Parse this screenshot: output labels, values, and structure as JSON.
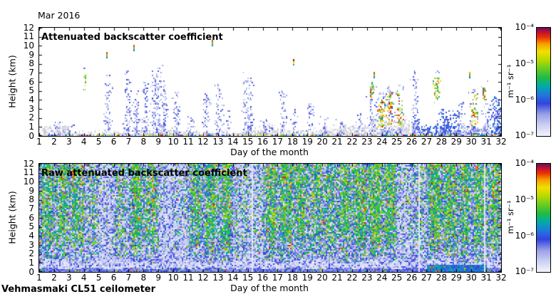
{
  "title": "Mar 2016",
  "footer": "Vehmasmaki CL51 ceilometer",
  "colorbar": {
    "unit": "m⁻¹ sr⁻¹",
    "ticks": [
      "10⁻⁴",
      "10⁻⁵",
      "10⁻⁶",
      "10⁻⁷"
    ]
  },
  "panels": [
    {
      "label": "Attenuated backscatter coefficient",
      "xlabel": "Day of the month",
      "ylabel": "Height (km)",
      "x_ticks": [
        1,
        2,
        3,
        4,
        5,
        6,
        7,
        8,
        9,
        10,
        11,
        12,
        13,
        14,
        15,
        16,
        17,
        18,
        19,
        20,
        21,
        22,
        23,
        24,
        25,
        26,
        27,
        28,
        29,
        30,
        31,
        32
      ],
      "y_ticks": [
        0,
        1,
        2,
        3,
        4,
        5,
        6,
        7,
        8,
        9,
        10,
        11,
        12
      ]
    },
    {
      "label": "Raw attenuated backscatter coefficient",
      "xlabel": "Day of the month",
      "ylabel": "Height (km)",
      "x_ticks": [
        1,
        2,
        3,
        4,
        5,
        6,
        7,
        8,
        9,
        10,
        11,
        12,
        13,
        14,
        15,
        16,
        17,
        18,
        19,
        20,
        21,
        22,
        23,
        24,
        25,
        26,
        27,
        28,
        29,
        30,
        31,
        32
      ],
      "y_ticks": [
        0,
        1,
        2,
        3,
        4,
        5,
        6,
        7,
        8,
        9,
        10,
        11,
        12
      ]
    }
  ],
  "colors": {
    "background": "#ffffff",
    "frame": "#000000",
    "colormap": [
      [
        0,
        "#f4f4fc"
      ],
      [
        0.1,
        "#ccd0f2"
      ],
      [
        0.2,
        "#99a0e8"
      ],
      [
        0.3,
        "#3344dd"
      ],
      [
        0.38,
        "#2277dd"
      ],
      [
        0.46,
        "#00aaaa"
      ],
      [
        0.54,
        "#22bb44"
      ],
      [
        0.62,
        "#66cc22"
      ],
      [
        0.7,
        "#b8d800"
      ],
      [
        0.78,
        "#f0e000"
      ],
      [
        0.85,
        "#f5a000"
      ],
      [
        0.91,
        "#ee3300"
      ],
      [
        0.96,
        "#bb1133"
      ],
      [
        1,
        "#6a0f5a"
      ]
    ],
    "surface_gray": [
      "#d4d4dc",
      "#cdcdd8",
      "#dcdce6",
      "#c8c8d2",
      "#e2e2ec",
      "#d6d8ea"
    ]
  },
  "chart_data": [
    {
      "type": "heatmap",
      "title": "Attenuated backscatter coefficient",
      "xlabel": "Day of the month",
      "ylabel": "Height (km)",
      "xlim": [
        1,
        32
      ],
      "ylim": [
        0,
        12
      ],
      "grid": false,
      "colorbar": {
        "scale": "log",
        "min": 1e-07,
        "max": 0.0001,
        "unit": "m⁻¹ sr⁻¹",
        "ticks": [
          "10⁻⁴",
          "10⁻⁵",
          "10⁻⁶",
          "10⁻⁷"
        ],
        "position": "right"
      },
      "seed": 20163,
      "features": {
        "description": "Monthly time-height plot: gray aerosol boundary layer below ~1-2 km with multicolour high-backscatter surface returns, light-blue precipitation/virga plumes, colourful cloud/precipitation clusters and isolated cloud dots aloft.",
        "surface_height_km": [
          1.0,
          1.4,
          0.6,
          0.55,
          0.6,
          0.7,
          0.6,
          0.7,
          1.0,
          0.7,
          0.8,
          0.6,
          0.8,
          0.6,
          1.0,
          1.3,
          0.8,
          0.7,
          0.9,
          1.1,
          1.3,
          1.2,
          1.6,
          1.9,
          1.8,
          1.5,
          1.3,
          1.4,
          1.0,
          0.9,
          1.1
        ],
        "surface_style": [
          0,
          0,
          0,
          0,
          0,
          0,
          0,
          0,
          0,
          0,
          0,
          0,
          0,
          0,
          0,
          0,
          0,
          0,
          0,
          0,
          0,
          0,
          0,
          0,
          0,
          1,
          1,
          1,
          2,
          2,
          2
        ],
        "plume_types": {
          "0": "blue virga plume",
          "1": "colourful precipitation column",
          "2": "dense blue boundary layer"
        },
        "plumes": [
          [
            2.2,
            1.7,
            0.35,
            0
          ],
          [
            3.0,
            1.4,
            0.2,
            0
          ],
          [
            5.55,
            7.3,
            0.13,
            0
          ],
          [
            6.9,
            7.6,
            0.16,
            0
          ],
          [
            7.5,
            5.2,
            0.1,
            0
          ],
          [
            8.1,
            6.3,
            0.13,
            0
          ],
          [
            8.8,
            8.0,
            0.22,
            0
          ],
          [
            9.35,
            6.6,
            0.12,
            0
          ],
          [
            10.2,
            5.8,
            0.15,
            0
          ],
          [
            11.1,
            2.3,
            0.22,
            0
          ],
          [
            12.2,
            5.3,
            0.13,
            0
          ],
          [
            13.0,
            6.1,
            0.15,
            0
          ],
          [
            13.65,
            3.2,
            0.1,
            0
          ],
          [
            14.85,
            7.2,
            0.16,
            0
          ],
          [
            15.15,
            6.6,
            0.1,
            0
          ],
          [
            16.2,
            2.1,
            0.2,
            0
          ],
          [
            17.3,
            5.6,
            0.13,
            0
          ],
          [
            18.1,
            3.3,
            0.1,
            0
          ],
          [
            19.2,
            4.1,
            0.14,
            0
          ],
          [
            20.1,
            2.4,
            0.15,
            0
          ],
          [
            21.2,
            2.1,
            0.15,
            0
          ],
          [
            22.45,
            3.3,
            0.12,
            0
          ],
          [
            23.25,
            6.3,
            0.13,
            0
          ],
          [
            23.95,
            5.0,
            0.22,
            1
          ],
          [
            24.5,
            5.6,
            0.14,
            1
          ],
          [
            25.15,
            5.9,
            0.15,
            1
          ],
          [
            26.2,
            7.6,
            0.13,
            0
          ],
          [
            28.4,
            3.1,
            0.35,
            2
          ],
          [
            29.2,
            4.1,
            0.18,
            0
          ],
          [
            30.15,
            5.3,
            0.16,
            1
          ],
          [
            31.0,
            4.2,
            0.2,
            0
          ],
          [
            31.7,
            4.6,
            0.28,
            2
          ]
        ],
        "clusters": [
          [
            4.05,
            5.1,
            6.9,
            0.045
          ],
          [
            23.3,
            4.4,
            6.1,
            0.08
          ],
          [
            27.65,
            4.2,
            6.6,
            0.13
          ],
          [
            30.8,
            4.0,
            5.5,
            0.1
          ]
        ],
        "cloud_dots": [
          [
            5.5,
            9.1,
            0.6
          ],
          [
            7.3,
            9.9,
            0.6
          ],
          [
            12.6,
            10.45,
            0.6
          ],
          [
            18.05,
            8.3,
            0.78
          ],
          [
            23.45,
            6.85,
            0.6
          ],
          [
            29.85,
            6.9,
            0.55
          ]
        ]
      }
    },
    {
      "type": "heatmap",
      "title": "Raw attenuated backscatter coefficient",
      "xlabel": "Day of the month",
      "ylabel": "Height (km)",
      "xlim": [
        1,
        32
      ],
      "ylim": [
        0,
        12
      ],
      "grid": false,
      "colorbar": {
        "scale": "log",
        "min": 1e-07,
        "max": 0.0001,
        "unit": "m⁻¹ sr⁻¹",
        "ticks": [
          "10⁻⁴",
          "10⁻⁵",
          "10⁻⁶",
          "10⁻⁷"
        ],
        "position": "right"
      },
      "seed": 31416,
      "features": {
        "description": "Uncorrected raw signal: dense speckle noise, daily vertical bands (green/yellow daytime noise, pale night-time columns), narrow orange streaks, whitish band near 0.4-1.1 km and blue surface layer.",
        "day_green": [
          0.85,
          0.8,
          0.8,
          0.55,
          0.25,
          0.65,
          0.9,
          0.75,
          0.3,
          0.4,
          0.8,
          0.85,
          0.9,
          0.5,
          0.4,
          0.85,
          0.9,
          0.85,
          0.75,
          0.8,
          0.85,
          0.9,
          0.95,
          0.9,
          0.45,
          0.55,
          0.95,
          0.9,
          0.85,
          0.9,
          0.85
        ],
        "day_orange": [
          0.35,
          0.55,
          0.5,
          0.2,
          0.1,
          0.25,
          0.65,
          0.5,
          0.1,
          0.1,
          0.35,
          0.45,
          0.65,
          0.2,
          0.25,
          0.35,
          0.5,
          0.4,
          0.3,
          0.4,
          0.45,
          0.5,
          0.7,
          0.65,
          0.15,
          0.2,
          0.65,
          0.5,
          0.45,
          0.55,
          0.65
        ],
        "day_white": [
          0.1,
          0.1,
          0.1,
          0.35,
          0.7,
          0.3,
          0.05,
          0.15,
          0.7,
          0.6,
          0.15,
          0.1,
          0.05,
          0.5,
          0.6,
          0.1,
          0.05,
          0.1,
          0.15,
          0.2,
          0.1,
          0.05,
          0.05,
          0.1,
          0.65,
          0.5,
          0.05,
          0.1,
          0.1,
          0.05,
          0.1
        ],
        "white_band_km": [
          0.45,
          1.2
        ],
        "gap_lines": [
          15.27,
          23.93,
          26.47,
          30.85
        ]
      }
    }
  ]
}
